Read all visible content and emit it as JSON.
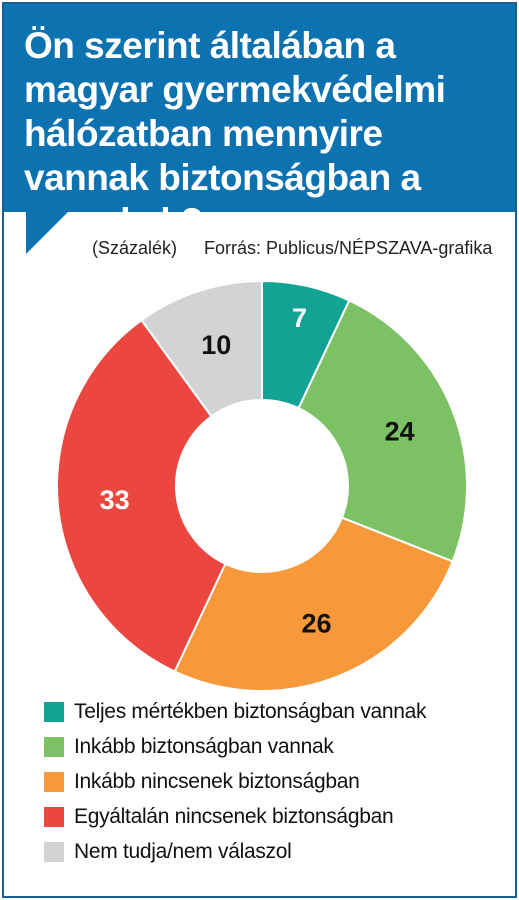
{
  "chart_data": {
    "type": "pie",
    "title": "Ön szerint általában a magyar gyermekvédelmi hálózatban mennyire vannak biztonságban a gyerekek?",
    "unit_label": "(Százalék)",
    "source": "Forrás: Publicus/NÉPSZAVA-grafika",
    "donut": true,
    "slices": [
      {
        "label": "Teljes mértékben biztonságban vannak",
        "value": 7,
        "color": "#13a394",
        "text_color": "#ffffff"
      },
      {
        "label": "Inkább biztonságban vannak",
        "value": 24,
        "color": "#7cc265",
        "text_color": "#111111"
      },
      {
        "label": "Inkább nincsenek biztonságban",
        "value": 26,
        "color": "#f7993a",
        "text_color": "#111111"
      },
      {
        "label": "Egyáltalán nincsenek biztonságban",
        "value": 33,
        "color": "#ec4640",
        "text_color": "#ffffff"
      },
      {
        "label": "Nem tudja/nem válaszol",
        "value": 10,
        "color": "#d3d3d3",
        "text_color": "#111111"
      }
    ],
    "legend_position": "bottom"
  },
  "colors": {
    "header_bg": "#0d72b0",
    "frame": "#1b5e8f"
  }
}
